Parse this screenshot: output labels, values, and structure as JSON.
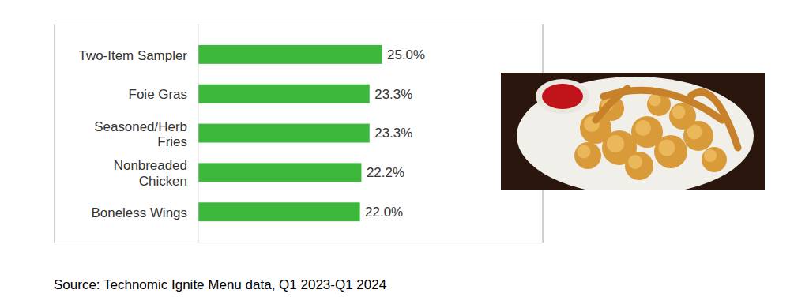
{
  "chart_data": {
    "type": "bar",
    "orientation": "horizontal",
    "categories": [
      "Two-Item Sampler",
      "Foie Gras",
      "Seasoned/Herb Fries",
      "Nonbreaded Chicken",
      "Boneless Wings"
    ],
    "values": [
      25.0,
      23.3,
      23.3,
      22.2,
      22.0
    ],
    "value_labels": [
      "25.0%",
      "23.3%",
      "23.3%",
      "22.2%",
      "22.0%"
    ],
    "color": "#3db83d",
    "xlim": [
      0,
      46.7
    ],
    "xticks": [],
    "grid": false,
    "data_labels": true,
    "tick_labels": "y",
    "caption": "Source: Technomic Ignite Menu data, Q1 2023-Q1 2024"
  }
}
